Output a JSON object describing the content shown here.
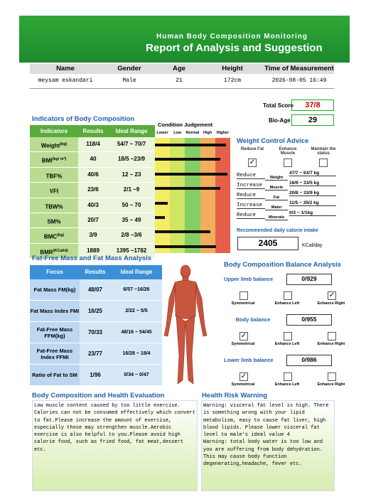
{
  "header": {
    "title": "Human Body Composition Monitoring",
    "subtitle": "Report of Analysis and Suggestion"
  },
  "patient": {
    "headers": [
      "Name",
      "Gender",
      "Age",
      "Height",
      "Time of Measurement"
    ],
    "values": [
      "meysam eskandari",
      "Male",
      "21",
      "172cm",
      "2026-08-05  16:49"
    ]
  },
  "score": {
    "total_label": "Total Score",
    "total": "37/8",
    "bioage_label": "Bio-Age",
    "bioage": "29"
  },
  "indicators": {
    "title": "Indicators of Body Composition",
    "headers": [
      "Indicators",
      "Results",
      "Ideal Range"
    ],
    "rows": [
      {
        "name": "Weight",
        "unit": "(kg)",
        "result": "118/4",
        "range": "54/7 ~ 70/7"
      },
      {
        "name": "BMI",
        "unit": "(kg/ m²)",
        "result": "40",
        "range": "18/5 ~23/9"
      },
      {
        "name": "TBF%",
        "unit": "",
        "result": "40/6",
        "range": "12 ~ 23"
      },
      {
        "name": "VFI",
        "unit": "",
        "result": "23/6",
        "range": "2/1 ~9"
      },
      {
        "name": "TBW%",
        "unit": "",
        "result": "40/3",
        "range": "50 ~ 70"
      },
      {
        "name": "SM%",
        "unit": "",
        "result": "20/7",
        "range": "35 ~ 49"
      },
      {
        "name": "BMC",
        "unit": "(kg)",
        "result": "3/9",
        "range": "2/8 ~3/6"
      },
      {
        "name": "BMR",
        "unit": "(KCal/d)",
        "result": "1889",
        "range": "1395 ~1782"
      }
    ]
  },
  "condition": {
    "title": "Condition Judgement",
    "levels": [
      "Lower",
      "Low",
      "Normal",
      "High",
      "Higher"
    ]
  },
  "weight_control": {
    "title": "Weight Control Advice",
    "options": [
      "Reduce Fat",
      "Enhance Muscle",
      "Maintain the status"
    ],
    "checked": 0,
    "rows": [
      [
        "Reduce",
        "Weight",
        "47/7 ~ 63/7 kg"
      ],
      [
        "Increase",
        "Muscle",
        "16/9 ~ 33/5 kg"
      ],
      [
        "Reduce",
        "Fat",
        "20/8 ~ 33/9 kg"
      ],
      [
        "Increase",
        "Water",
        "11/5 ~ 35/2 kg"
      ],
      [
        "Reduce",
        "Minerals",
        "0/3 ~ 1/1kg"
      ]
    ],
    "calorie_label": "Recommended daily calorie intake",
    "calorie": "2405",
    "calorie_unit": "KCal/day"
  },
  "fat_free": {
    "title": "Fat-Free Mass and Fat Mass Analysis",
    "headers": [
      "Focus",
      "Results",
      "Ideal Range"
    ],
    "rows": [
      [
        "Fat Mass FM(kg)",
        "48/07",
        "6/57 ~16/26"
      ],
      [
        "Fat Mass Index FMI",
        "16/25",
        "2/22 ~ 5/5"
      ],
      [
        "Fat-Free Mass FFM(kg)",
        "70/33",
        "48/16 ~ 54/45"
      ],
      [
        "Fat-Free Mass Index FFMI",
        "23/77",
        "16/28 ~ 18/4"
      ],
      [
        "Ratio of Fat to SM",
        "1/96",
        "0/34 ~ 0/47"
      ]
    ]
  },
  "balance": {
    "title": "Body Composition Balance Analysis",
    "options": [
      "Symmetrical",
      "Enhance Left",
      "Enhance Right"
    ],
    "sections": [
      {
        "label": "Upper limb balance",
        "value": "0/929",
        "checked": 2
      },
      {
        "label": "Body balance",
        "value": "0/955",
        "checked": 0
      },
      {
        "label": "Lower limb balance",
        "value": "0/986",
        "checked": 0
      }
    ]
  },
  "evaluation": {
    "title": "Body Composition and Health Evaluation",
    "text": "Low muscle content caused by too little exercise. Calories can not be consumed effectively which convert to fat.Please increase the amount of exercise, especially those may strengthen muscle.Aerobic exercise is also helpful to you.Please avoid high calorie food, such as fried food, fat meat,dessert etc."
  },
  "risk": {
    "title": "Health Risk Warning",
    "text": "Warning: visceral fat level is high. There is something wrong with your lipid metabolism, easy to cause fat liver, high blood lipids. Please lower visceral fat level to male's ideal value 4\nWarning: total body water is too low and you are suffering from body dehydration. This may cause body function degenerating,headache, fever etc."
  }
}
